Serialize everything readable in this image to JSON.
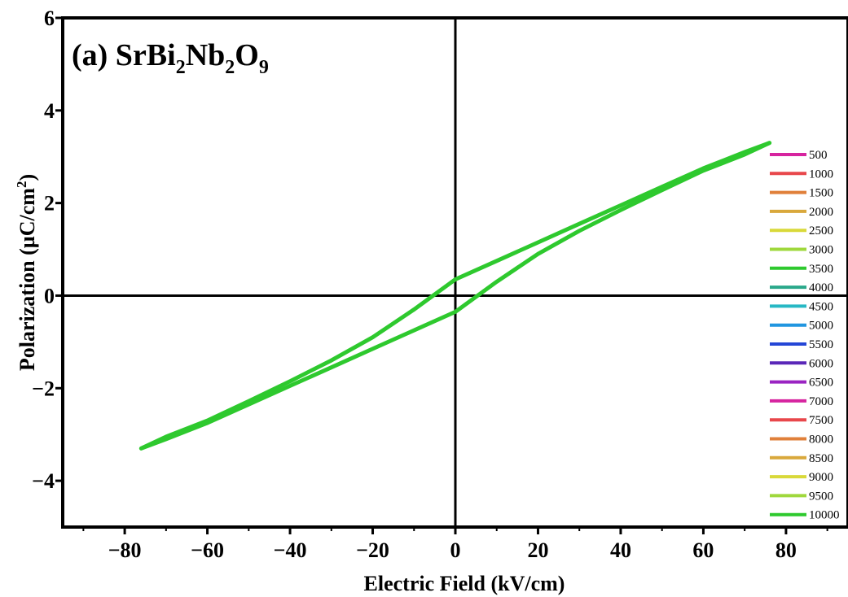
{
  "chart_data": {
    "type": "line",
    "title": {
      "prefix": "(a) SrBi",
      "sub1": "2",
      "mid1": "Nb",
      "sub2": "2",
      "mid2": "O",
      "sub3": "9"
    },
    "xlabel": "Electric Field (kV/cm)",
    "ylabel": {
      "main": "Polarization (µC/cm",
      "sup": "2",
      "end": ")"
    },
    "xlim": [
      -95,
      95
    ],
    "ylim": [
      -5,
      6
    ],
    "xticks": [
      -80,
      -60,
      -40,
      -20,
      0,
      20,
      40,
      60,
      80
    ],
    "xtick_labels": [
      "−80",
      "−60",
      "−40",
      "−20",
      "0",
      "20",
      "40",
      "60",
      "80"
    ],
    "yticks": [
      -4,
      -2,
      0,
      2,
      4,
      6
    ],
    "ytick_labels": [
      "−4",
      "−2",
      "0",
      "2",
      "4",
      "6"
    ],
    "grid": false,
    "legend_position": "right",
    "series": [
      {
        "name": "500",
        "color": "#d6249f"
      },
      {
        "name": "1000",
        "color": "#e8474b"
      },
      {
        "name": "1500",
        "color": "#e0803a"
      },
      {
        "name": "2000",
        "color": "#d9a83c"
      },
      {
        "name": "2500",
        "color": "#d9d93a"
      },
      {
        "name": "3000",
        "color": "#9fd83c"
      },
      {
        "name": "3500",
        "color": "#2ec92e"
      },
      {
        "name": "4000",
        "color": "#2aa88a"
      },
      {
        "name": "4500",
        "color": "#27b8c4"
      },
      {
        "name": "5000",
        "color": "#2196e0"
      },
      {
        "name": "5500",
        "color": "#2446d6"
      },
      {
        "name": "6000",
        "color": "#5a27b8"
      },
      {
        "name": "6500",
        "color": "#9a24c2"
      },
      {
        "name": "7000",
        "color": "#d6249f"
      },
      {
        "name": "7500",
        "color": "#e8474b"
      },
      {
        "name": "8000",
        "color": "#e0803a"
      },
      {
        "name": "8500",
        "color": "#d9a83c"
      },
      {
        "name": "9000",
        "color": "#d9d93a"
      },
      {
        "name": "9500",
        "color": "#9fd83c"
      },
      {
        "name": "10000",
        "color": "#2ec92e"
      }
    ],
    "loop": {
      "color": "#2ec92e",
      "upper_branch": {
        "x": [
          -76,
          -70,
          -60,
          -50,
          -40,
          -30,
          -20,
          -10,
          0,
          10,
          20,
          30,
          40,
          50,
          60,
          70,
          76
        ],
        "y": [
          -3.3,
          -3.05,
          -2.7,
          -2.28,
          -1.85,
          -1.4,
          -0.9,
          -0.3,
          0.35,
          0.75,
          1.15,
          1.55,
          1.95,
          2.35,
          2.75,
          3.1,
          3.3
        ]
      },
      "lower_branch": {
        "x": [
          76,
          70,
          60,
          50,
          40,
          30,
          20,
          10,
          0,
          -10,
          -20,
          -30,
          -40,
          -50,
          -60,
          -70,
          -76
        ],
        "y": [
          3.3,
          3.05,
          2.7,
          2.28,
          1.85,
          1.4,
          0.9,
          0.3,
          -0.35,
          -0.75,
          -1.15,
          -1.55,
          -1.95,
          -2.35,
          -2.75,
          -3.1,
          -3.3
        ]
      }
    }
  }
}
